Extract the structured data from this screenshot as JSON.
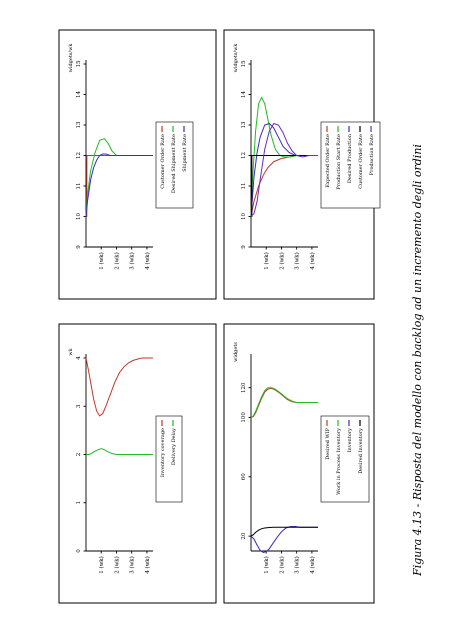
{
  "caption": "Figura 4.13 - Risposta del modello con backlog ad un incremento degli ordini",
  "chart_data": [
    {
      "id": "top-left",
      "type": "line",
      "unit_label": "widgets/wk",
      "xticks": [
        "1 (wk)",
        "2 (wk)",
        "3 (wk)",
        "4 (wk)"
      ],
      "x_range": [
        0,
        4.4
      ],
      "ylim": [
        9,
        15
      ],
      "yticks": [
        9,
        10,
        11,
        12,
        13,
        14,
        15
      ],
      "ytick_labels": [
        "9",
        "10",
        "11",
        "12",
        "13",
        "14",
        "15"
      ],
      "series": [
        {
          "name": "Customer Order Rate",
          "color": "#c0392b",
          "x": [
            0,
            0.05,
            0.06,
            4.4
          ],
          "y": [
            10,
            10,
            12,
            12
          ]
        },
        {
          "name": "Desired Shipment Rate",
          "color": "#22bb22",
          "x": [
            0,
            0.1,
            0.3,
            0.6,
            0.9,
            1.2,
            1.45,
            1.7,
            2.0,
            2.4,
            2.8,
            3.2,
            3.6,
            4.0,
            4.4
          ],
          "y": [
            10,
            10.7,
            11.5,
            12.1,
            12.5,
            12.55,
            12.4,
            12.15,
            12.0,
            12.0,
            12.0,
            12.0,
            12.0,
            12.0,
            12.0
          ]
        },
        {
          "name": "Shipment Rate",
          "color": "#3a2bbf",
          "x": [
            0,
            0.1,
            0.3,
            0.5,
            0.7,
            0.9,
            1.1,
            1.3,
            1.6,
            2.0,
            2.4,
            2.8,
            3.2,
            3.6,
            4.0,
            4.4
          ],
          "y": [
            10,
            10.5,
            11.2,
            11.6,
            11.85,
            12.0,
            12.05,
            12.05,
            12.0,
            12.0,
            12.0,
            12.0,
            12.0,
            12.0,
            12.0,
            12.0
          ]
        }
      ]
    },
    {
      "id": "top-right",
      "type": "line",
      "unit_label": "widgets/wk",
      "xticks": [
        "1 (wk)",
        "2 (wk)",
        "3 (wk)",
        "4 (wk)"
      ],
      "x_range": [
        0,
        4.4
      ],
      "ylim": [
        9,
        15
      ],
      "yticks": [
        9,
        10,
        11,
        12,
        13,
        14,
        15
      ],
      "ytick_labels": [
        "9",
        "10",
        "11",
        "12",
        "13",
        "14",
        "15"
      ],
      "series": [
        {
          "name": "Expected Order Rate",
          "color": "#c0392b",
          "x": [
            0,
            0.2,
            0.5,
            0.8,
            1.1,
            1.5,
            2.0,
            2.5,
            3.0,
            3.5,
            4.0,
            4.4
          ],
          "y": [
            10,
            10.5,
            11.0,
            11.35,
            11.6,
            11.8,
            11.9,
            11.95,
            12.0,
            12.0,
            12.0,
            12.0
          ]
        },
        {
          "name": "Production Start Rate",
          "color": "#22bb22",
          "x": [
            0,
            0.1,
            0.3,
            0.5,
            0.7,
            0.9,
            1.1,
            1.3,
            1.6,
            1.9,
            2.2,
            2.6,
            3.0,
            3.4,
            3.8,
            4.2,
            4.4
          ],
          "y": [
            10,
            11.2,
            12.8,
            13.7,
            13.9,
            13.7,
            13.2,
            12.7,
            12.2,
            12.0,
            11.95,
            11.95,
            12.0,
            12.0,
            12.0,
            12.0,
            12.0
          ]
        },
        {
          "name": "Desired Production",
          "color": "#3a2bbf",
          "x": [
            0,
            0.2,
            0.4,
            0.6,
            0.9,
            1.2,
            1.5,
            1.8,
            2.1,
            2.5,
            2.9,
            3.3,
            3.7,
            4.1,
            4.4
          ],
          "y": [
            10,
            11.3,
            12.1,
            12.6,
            13.0,
            13.05,
            12.9,
            12.6,
            12.3,
            12.1,
            12.0,
            12.0,
            12.0,
            12.0,
            12.0
          ]
        },
        {
          "name": "Customer Order Rate",
          "color": "#000000",
          "x": [
            0,
            0.05,
            0.06,
            4.4
          ],
          "y": [
            10,
            10,
            12,
            12
          ]
        },
        {
          "name": "Production Rate",
          "color": "#6a2bbf",
          "x": [
            0,
            0.2,
            0.4,
            0.6,
            0.9,
            1.2,
            1.5,
            1.8,
            2.1,
            2.4,
            2.7,
            3.0,
            3.4,
            3.8,
            4.2,
            4.4
          ],
          "y": [
            10,
            10.1,
            10.5,
            11.2,
            12.2,
            12.8,
            13.05,
            13.0,
            12.75,
            12.4,
            12.15,
            12.0,
            11.95,
            12.0,
            12.0,
            12.0
          ]
        }
      ]
    },
    {
      "id": "bottom-left",
      "type": "line",
      "unit_label": "wk",
      "xticks": [
        "1 (wk)",
        "2 (wk)",
        "3 (wk)",
        "4 (wk)"
      ],
      "x_range": [
        0,
        4.4
      ],
      "ylim": [
        0,
        4
      ],
      "yticks": [
        0,
        1,
        2,
        3,
        4
      ],
      "ytick_labels": [
        "0",
        "1",
        "2",
        "3",
        "4"
      ],
      "series": [
        {
          "name": "Inventory coverage",
          "color": "#c0392b",
          "x": [
            0,
            0.1,
            0.3,
            0.5,
            0.7,
            0.9,
            1.1,
            1.3,
            1.6,
            1.9,
            2.2,
            2.5,
            2.8,
            3.1,
            3.4,
            3.7,
            4.0,
            4.4
          ],
          "y": [
            4.0,
            3.85,
            3.5,
            3.15,
            2.9,
            2.8,
            2.85,
            3.0,
            3.25,
            3.5,
            3.7,
            3.82,
            3.9,
            3.95,
            3.98,
            4.0,
            4.0,
            4.0
          ]
        },
        {
          "name": "Delivery Delay",
          "color": "#22bb22",
          "x": [
            0,
            0.2,
            0.4,
            0.6,
            0.8,
            1.0,
            1.2,
            1.4,
            1.7,
            2.0,
            2.4,
            2.8,
            3.2,
            3.6,
            4.0,
            4.4
          ],
          "y": [
            2.0,
            2.0,
            2.03,
            2.07,
            2.1,
            2.12,
            2.1,
            2.06,
            2.02,
            2.0,
            2.0,
            2.0,
            2.0,
            2.0,
            2.0,
            2.0
          ]
        }
      ]
    },
    {
      "id": "bottom-right",
      "type": "line",
      "unit_label": "widgets",
      "xticks": [
        "1 (wk)",
        "2 (wk)",
        "3 (wk)",
        "4 (wk)"
      ],
      "x_range": [
        0,
        4.4
      ],
      "ylim": [
        10,
        140
      ],
      "yticks": [
        20,
        60,
        100,
        120
      ],
      "ytick_labels": [
        "20",
        "60",
        "100",
        "120"
      ],
      "series": [
        {
          "name": "Desired WIP",
          "color": "#c0392b",
          "x": [
            0,
            0.15,
            0.3,
            0.5,
            0.7,
            0.9,
            1.1,
            1.3,
            1.5,
            1.8,
            2.1,
            2.4,
            2.7,
            3.0,
            3.3,
            3.6,
            4.0,
            4.4
          ],
          "y": [
            100,
            100.5,
            103,
            108,
            113,
            117,
            119,
            119.5,
            119,
            117,
            114.5,
            112,
            110.5,
            110,
            110,
            110,
            110,
            110
          ]
        },
        {
          "name": "Work in Process Inventory",
          "color": "#22bb22",
          "x": [
            0,
            0.15,
            0.3,
            0.5,
            0.7,
            0.9,
            1.1,
            1.3,
            1.5,
            1.8,
            2.1,
            2.4,
            2.7,
            3.0,
            3.3,
            3.6,
            4.0,
            4.4
          ],
          "y": [
            100,
            101,
            104,
            109,
            114,
            118,
            120,
            120,
            119.5,
            117.5,
            115,
            112.5,
            111,
            110,
            110,
            110,
            110,
            110
          ]
        },
        {
          "name": "Inventory",
          "color": "#3a2bbf",
          "x": [
            0,
            0.2,
            0.4,
            0.6,
            0.8,
            1.0,
            1.2,
            1.4,
            1.7,
            2.0,
            2.3,
            2.6,
            2.9,
            3.2,
            3.6,
            4.0,
            4.4
          ],
          "y": [
            20,
            18,
            14,
            10.5,
            9,
            9.5,
            11.5,
            14.5,
            19,
            23,
            25.5,
            26.5,
            26.5,
            26,
            26,
            26,
            26
          ]
        },
        {
          "name": "Desired Inventory",
          "color": "#000000",
          "x": [
            0,
            0.15,
            0.3,
            0.5,
            0.7,
            0.9,
            1.2,
            1.5,
            1.8,
            2.2,
            2.6,
            3.0,
            3.4,
            3.8,
            4.4
          ],
          "y": [
            20,
            21,
            22.5,
            24,
            25,
            25.5,
            25.8,
            26,
            26,
            26,
            26,
            26,
            26,
            26,
            26
          ]
        }
      ]
    }
  ]
}
